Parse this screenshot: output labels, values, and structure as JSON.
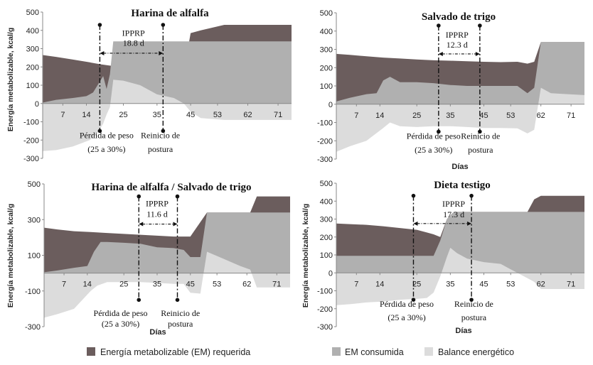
{
  "legend": [
    {
      "label": "Energía metabolizable (EM) requerida",
      "color": "#6b5d5d"
    },
    {
      "label": "EM consumida",
      "color": "#b0b0b0"
    },
    {
      "label": "Balance energético",
      "color": "#dcdcdc"
    }
  ],
  "chart_data": [
    {
      "type": "area",
      "title": "Harina de alfalfa",
      "xlabel": "",
      "ylabel": "Energía metabolizable, kcal/g",
      "ylim": [
        -300,
        500
      ],
      "yticks": [
        -300,
        -200,
        -100,
        0,
        100,
        200,
        300,
        400,
        500
      ],
      "xlim": [
        1,
        75
      ],
      "xticks": [
        7,
        14,
        25,
        35,
        45,
        53,
        62,
        71
      ],
      "series": [
        {
          "name": "Energía metabolizable (EM) requerida",
          "x": [
            1,
            5,
            10,
            15,
            18,
            20,
            22,
            25,
            30,
            35,
            40,
            43,
            45,
            48,
            55,
            60,
            65,
            70,
            75
          ],
          "values": [
            265,
            255,
            240,
            225,
            215,
            210,
            205,
            200,
            190,
            180,
            175,
            175,
            385,
            400,
            430,
            430,
            430,
            430,
            430
          ]
        },
        {
          "name": "EM consumida",
          "x": [
            1,
            5,
            10,
            14,
            16,
            18,
            19,
            20,
            21,
            22,
            25,
            30,
            35,
            40,
            43,
            45,
            48,
            55,
            60,
            65,
            70,
            75
          ],
          "values": [
            5,
            20,
            30,
            40,
            60,
            120,
            150,
            80,
            160,
            340,
            340,
            340,
            340,
            340,
            340,
            340,
            340,
            340,
            340,
            340,
            340,
            340
          ]
        },
        {
          "name": "Balance energético",
          "x": [
            1,
            5,
            10,
            15,
            17,
            19,
            20,
            21,
            22,
            25,
            30,
            35,
            40,
            43,
            45,
            48,
            55,
            60,
            65,
            70,
            75
          ],
          "values": [
            -260,
            -255,
            -235,
            -200,
            -170,
            -110,
            -60,
            -20,
            130,
            125,
            100,
            50,
            30,
            0,
            -45,
            -80,
            -90,
            -90,
            -90,
            -90,
            -90
          ]
        }
      ],
      "annotations": [
        {
          "text": "IPPRP",
          "x": 28,
          "y": 370
        },
        {
          "text": "18.8 d",
          "x": 28,
          "y": 315
        },
        {
          "text": "Pérdida de peso",
          "x": 20,
          "y": -190
        },
        {
          "text": "(25 a 30%)",
          "x": 20,
          "y": -265
        },
        {
          "text": "Reinicio de",
          "x": 36,
          "y": -190
        },
        {
          "text": "postura",
          "x": 36,
          "y": -265
        }
      ],
      "markers": {
        "start": 18,
        "end": 36.8
      }
    },
    {
      "type": "area",
      "title": "Salvado de trigo",
      "xlabel": "Días",
      "ylabel": "",
      "ylim": [
        -300,
        500
      ],
      "yticks": [
        -300,
        -200,
        -100,
        0,
        100,
        200,
        300,
        400,
        500
      ],
      "xlim": [
        1,
        75
      ],
      "xticks": [
        7,
        14,
        25,
        35,
        45,
        53,
        62,
        71
      ],
      "series": [
        {
          "name": "Energía metabolizable (EM) requerida",
          "x": [
            1,
            5,
            10,
            15,
            20,
            25,
            30,
            35,
            40,
            45,
            50,
            55,
            58,
            60,
            62,
            65,
            70,
            75
          ],
          "values": [
            275,
            270,
            262,
            255,
            250,
            245,
            240,
            238,
            235,
            232,
            230,
            232,
            222,
            232,
            340,
            340,
            340,
            340
          ]
        },
        {
          "name": "EM consumida",
          "x": [
            1,
            5,
            10,
            13,
            15,
            17,
            20,
            25,
            30,
            35,
            40,
            45,
            50,
            55,
            58,
            60,
            62,
            65,
            70,
            75
          ],
          "values": [
            15,
            35,
            55,
            60,
            130,
            150,
            120,
            120,
            115,
            105,
            100,
            100,
            100,
            100,
            60,
            90,
            340,
            340,
            340,
            340
          ]
        },
        {
          "name": "Balance energético",
          "x": [
            1,
            5,
            10,
            15,
            17,
            20,
            25,
            30,
            35,
            40,
            45,
            50,
            55,
            58,
            60,
            62,
            65,
            70,
            75
          ],
          "values": [
            -260,
            -230,
            -200,
            -130,
            -100,
            -120,
            -125,
            -120,
            -120,
            -125,
            -130,
            -130,
            -132,
            -160,
            -140,
            90,
            60,
            55,
            50
          ]
        }
      ],
      "annotations": [
        {
          "text": "IPPRP",
          "x": 37,
          "y": 365
        },
        {
          "text": "12.3 d",
          "x": 37,
          "y": 310
        },
        {
          "text": "Pérdida de peso",
          "x": 30,
          "y": -190
        },
        {
          "text": "(25 a 30%)",
          "x": 30,
          "y": -265
        },
        {
          "text": "Reinicio de",
          "x": 44,
          "y": -190
        },
        {
          "text": "postura",
          "x": 44,
          "y": -265
        }
      ],
      "markers": {
        "start": 31.5,
        "end": 43.8
      }
    },
    {
      "type": "area",
      "title": "Harina de alfalfa / Salvado de trigo",
      "xlabel": "Días",
      "ylabel": "Energía metabolizable, kcal/g",
      "ylim": [
        -300,
        500
      ],
      "yticks": [
        -300,
        -100,
        100,
        300,
        500
      ],
      "xlim": [
        1,
        75
      ],
      "xticks": [
        7,
        14,
        25,
        35,
        45,
        53,
        62,
        71
      ],
      "series": [
        {
          "name": "Energía metabolizable (EM) requerida",
          "x": [
            1,
            5,
            10,
            15,
            20,
            25,
            30,
            35,
            40,
            45,
            50,
            55,
            60,
            63,
            65,
            70,
            75
          ],
          "values": [
            255,
            245,
            235,
            230,
            225,
            220,
            215,
            210,
            205,
            205,
            340,
            340,
            340,
            340,
            430,
            430,
            430
          ]
        },
        {
          "name": "EM consumida",
          "x": [
            1,
            5,
            10,
            14,
            16,
            18,
            20,
            25,
            30,
            35,
            40,
            43,
            45,
            48,
            50,
            55,
            60,
            65,
            70,
            75
          ],
          "values": [
            5,
            15,
            30,
            40,
            120,
            175,
            175,
            170,
            165,
            145,
            140,
            130,
            90,
            90,
            340,
            340,
            340,
            340,
            340,
            340
          ]
        },
        {
          "name": "Balance energético",
          "x": [
            1,
            5,
            10,
            15,
            17,
            20,
            25,
            30,
            35,
            40,
            43,
            45,
            48,
            50,
            55,
            60,
            63,
            65,
            70,
            75
          ],
          "values": [
            -250,
            -230,
            -200,
            -100,
            -70,
            -50,
            -50,
            -50,
            -55,
            -60,
            -60,
            -110,
            -115,
            120,
            80,
            40,
            20,
            -80,
            -80,
            -80
          ]
        }
      ],
      "annotations": [
        {
          "text": "IPPRP",
          "x": 35,
          "y": 375
        },
        {
          "text": "11.6 d",
          "x": 35,
          "y": 315
        },
        {
          "text": "Pérdida de peso",
          "x": 24,
          "y": -240
        },
        {
          "text": "(25 a 30%)",
          "x": 24,
          "y": -300
        },
        {
          "text": "Reinicio de",
          "x": 42,
          "y": -240
        },
        {
          "text": "postura",
          "x": 42,
          "y": -300
        }
      ],
      "markers": {
        "start": 29.5,
        "end": 41.1
      }
    },
    {
      "type": "area",
      "title": "Dieta testigo",
      "xlabel": "Días",
      "ylabel": "Energía metabolizable, kcal/g",
      "ylim": [
        -300,
        500
      ],
      "yticks": [
        -300,
        -200,
        -100,
        0,
        100,
        200,
        300,
        400,
        500
      ],
      "xlim": [
        1,
        75
      ],
      "xticks": [
        7,
        14,
        25,
        35,
        45,
        53,
        62,
        71
      ],
      "series": [
        {
          "name": "Energía metabolizable (EM) requerida",
          "x": [
            1,
            5,
            10,
            15,
            20,
            25,
            28,
            30,
            32,
            34,
            36,
            40,
            45,
            50,
            55,
            58,
            60,
            62,
            65,
            70,
            75
          ],
          "values": [
            275,
            272,
            268,
            260,
            250,
            240,
            225,
            215,
            200,
            300,
            340,
            340,
            340,
            340,
            340,
            340,
            410,
            430,
            430,
            430,
            430
          ]
        },
        {
          "name": "EM consumida",
          "x": [
            1,
            5,
            10,
            15,
            20,
            25,
            28,
            30,
            32,
            34,
            36,
            40,
            45,
            50,
            55,
            60,
            65,
            70,
            75
          ],
          "values": [
            95,
            95,
            95,
            95,
            95,
            95,
            95,
            95,
            180,
            300,
            340,
            340,
            340,
            340,
            340,
            340,
            340,
            340,
            340
          ]
        },
        {
          "name": "Balance energético",
          "x": [
            1,
            5,
            10,
            15,
            20,
            25,
            28,
            30,
            32,
            34,
            35,
            37,
            40,
            45,
            50,
            53,
            55,
            58,
            60,
            62,
            65,
            70,
            75
          ],
          "values": [
            -180,
            -175,
            -165,
            -160,
            -150,
            -145,
            -140,
            -110,
            -20,
            90,
            140,
            110,
            80,
            60,
            50,
            20,
            0,
            -30,
            -50,
            -90,
            -90,
            -90,
            -90
          ]
        }
      ],
      "annotations": [
        {
          "text": "IPPRP",
          "x": 36,
          "y": 370
        },
        {
          "text": "17.3 d",
          "x": 36,
          "y": 310
        },
        {
          "text": "Pérdida de peso",
          "x": 22,
          "y": -190
        },
        {
          "text": "(25 a 30%)",
          "x": 22,
          "y": -265
        },
        {
          "text": "Reinicio de",
          "x": 42,
          "y": -190
        },
        {
          "text": "postura",
          "x": 42,
          "y": -265
        }
      ],
      "markers": {
        "start": 24,
        "end": 41.3
      }
    }
  ]
}
